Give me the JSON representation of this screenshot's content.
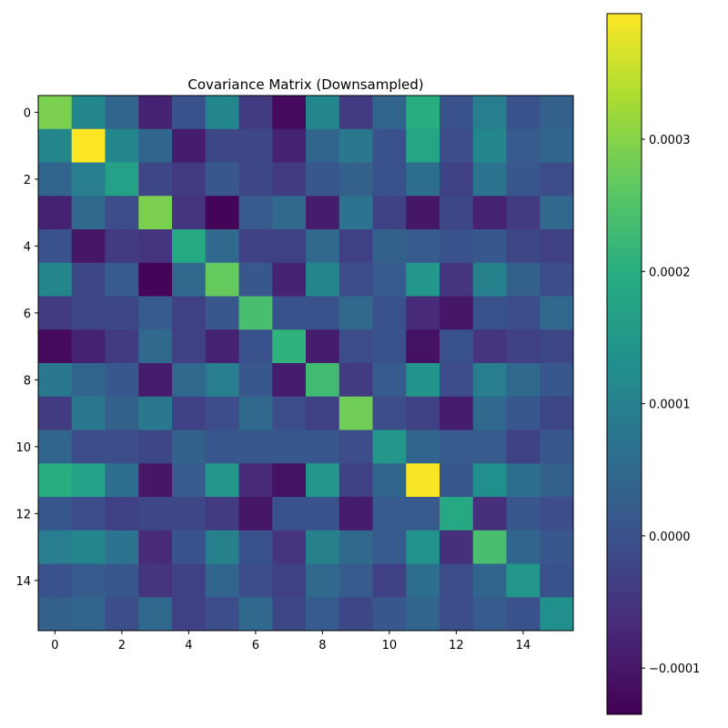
{
  "chart_data": {
    "type": "heatmap",
    "title": "Covariance Matrix (Downsampled)",
    "xlabel": "",
    "ylabel": "",
    "colormap": "viridis",
    "grid": false,
    "color_range": [
      -0.000135,
      0.000395
    ],
    "colorbar_ticks": [
      -0.0001,
      0.0,
      0.0001,
      0.0002,
      0.0003
    ],
    "colorbar_tick_labels": [
      "−0.0001",
      "0.0000",
      "0.0001",
      "0.0002",
      "0.0003"
    ],
    "x_ticks": [
      0,
      2,
      4,
      6,
      8,
      10,
      12,
      14
    ],
    "y_ticks": [
      0,
      2,
      4,
      6,
      8,
      10,
      12,
      14
    ],
    "x_tick_labels": [
      "0",
      "2",
      "4",
      "6",
      "8",
      "10",
      "12",
      "14"
    ],
    "y_tick_labels": [
      "0",
      "2",
      "4",
      "6",
      "8",
      "10",
      "12",
      "14"
    ],
    "matrix": [
      [
        0.00029,
        0.00011,
        4e-05,
        -8e-05,
        0.0,
        0.00011,
        -4e-05,
        -0.00012,
        0.00011,
        -4e-05,
        4e-05,
        0.0002,
        0.0,
        9e-05,
        0.0,
        3e-05
      ],
      [
        0.00011,
        0.0004,
        0.00011,
        4e-05,
        -9e-05,
        -2e-05,
        -2e-05,
        -8e-05,
        4e-05,
        8e-05,
        0.0,
        0.00018,
        -1e-05,
        0.00011,
        2e-05,
        4e-05
      ],
      [
        4e-05,
        9e-05,
        0.00017,
        -2e-05,
        -4e-05,
        1e-05,
        -2e-05,
        -4e-05,
        1e-05,
        3e-05,
        0.0,
        6e-05,
        -3e-05,
        7e-05,
        1e-05,
        -1e-05
      ],
      [
        -8e-05,
        5e-05,
        -1e-05,
        0.00029,
        -5e-05,
        -0.00013,
        2e-05,
        5e-05,
        -9e-05,
        7e-05,
        -3e-05,
        -0.0001,
        -2e-05,
        -8e-05,
        -4e-05,
        5e-05
      ],
      [
        0.0,
        -0.0001,
        -4e-05,
        -5e-05,
        0.00019,
        5e-05,
        -3e-05,
        -3e-05,
        5e-05,
        -3e-05,
        3e-05,
        2e-05,
        0.0,
        1e-05,
        -2e-05,
        -3e-05
      ],
      [
        0.00011,
        -2e-05,
        2e-05,
        -0.00013,
        5e-05,
        0.00027,
        1e-05,
        -8e-05,
        0.00011,
        -1e-05,
        2e-05,
        0.00015,
        -5e-05,
        0.0001,
        3e-05,
        -1e-05
      ],
      [
        -4e-05,
        -2e-05,
        -2e-05,
        2e-05,
        -3e-05,
        1e-05,
        0.00024,
        0.0,
        0.0,
        5e-05,
        0.0,
        -7e-05,
        -0.0001,
        0.0,
        -1e-05,
        5e-05
      ],
      [
        -0.00012,
        -8e-05,
        -4e-05,
        5e-05,
        -3e-05,
        -8e-05,
        0.0,
        0.00021,
        -9e-05,
        -1e-05,
        0.0,
        -0.00011,
        0.0,
        -5e-05,
        -3e-05,
        -2e-05
      ],
      [
        8e-05,
        4e-05,
        1e-05,
        -9e-05,
        5e-05,
        9e-05,
        1e-05,
        -9e-05,
        0.00023,
        -4e-05,
        2e-05,
        0.00014,
        -1e-05,
        9e-05,
        5e-05,
        1e-05
      ],
      [
        -4e-05,
        8e-05,
        3e-05,
        8e-05,
        -3e-05,
        -1e-05,
        5e-05,
        -1e-05,
        -3e-05,
        0.00028,
        -1e-05,
        -3e-05,
        -9e-05,
        5e-05,
        1e-05,
        -2e-05
      ],
      [
        4e-05,
        -1e-05,
        -1e-05,
        -2e-05,
        3e-05,
        1e-05,
        1e-05,
        1e-05,
        1e-05,
        -1e-05,
        0.00015,
        4e-05,
        2e-05,
        2e-05,
        -3e-05,
        1e-05
      ],
      [
        0.0002,
        0.00017,
        6e-05,
        -0.0001,
        2e-05,
        0.00015,
        -7e-05,
        -0.00011,
        0.00015,
        -3e-05,
        4e-05,
        0.00039,
        1e-05,
        0.00013,
        6e-05,
        3e-05
      ],
      [
        1e-05,
        -1e-05,
        -3e-05,
        -2e-05,
        -2e-05,
        -4e-05,
        -0.0001,
        0.0,
        0.0,
        -9e-05,
        2e-05,
        2e-05,
        0.00019,
        -6e-05,
        1e-05,
        -1e-05
      ],
      [
        9e-05,
        0.00011,
        7e-05,
        -7e-05,
        0.0,
        0.0001,
        0.0,
        -5e-05,
        0.0001,
        5e-05,
        2e-05,
        0.00014,
        -6e-05,
        0.00024,
        4e-05,
        1e-05
      ],
      [
        0.0,
        2e-05,
        1e-05,
        -5e-05,
        -3e-05,
        4e-05,
        -1e-05,
        -3e-05,
        5e-05,
        2e-05,
        -3e-05,
        6e-05,
        -1e-05,
        4e-05,
        0.00015,
        0.0
      ],
      [
        3e-05,
        4e-05,
        -1e-05,
        5e-05,
        -3e-05,
        -1e-05,
        5e-05,
        -2e-05,
        2e-05,
        -2e-05,
        1e-05,
        4e-05,
        -1e-05,
        2e-05,
        0.0,
        0.00013
      ]
    ]
  }
}
